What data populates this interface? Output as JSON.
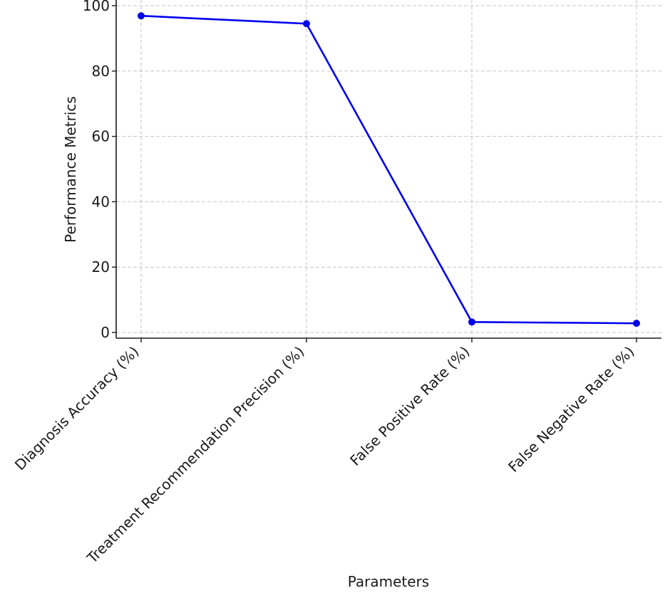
{
  "chart_data": {
    "type": "line",
    "title": "",
    "xlabel": "Parameters",
    "ylabel": "Performance Metrics",
    "categories": [
      "Diagnosis Accuracy (%)",
      "Treatment Recommendation Precision (%)",
      "False Positive Rate (%)",
      "False Negative Rate (%)"
    ],
    "series": [
      {
        "values": [
          96.9,
          94.5,
          3.2,
          2.8
        ],
        "color": "#0000ee",
        "marker": "circle"
      }
    ],
    "ylim": [
      -1.7,
      100
    ],
    "yticks": [
      0,
      20,
      40,
      60,
      80,
      100
    ],
    "grid": true,
    "legend": false
  }
}
